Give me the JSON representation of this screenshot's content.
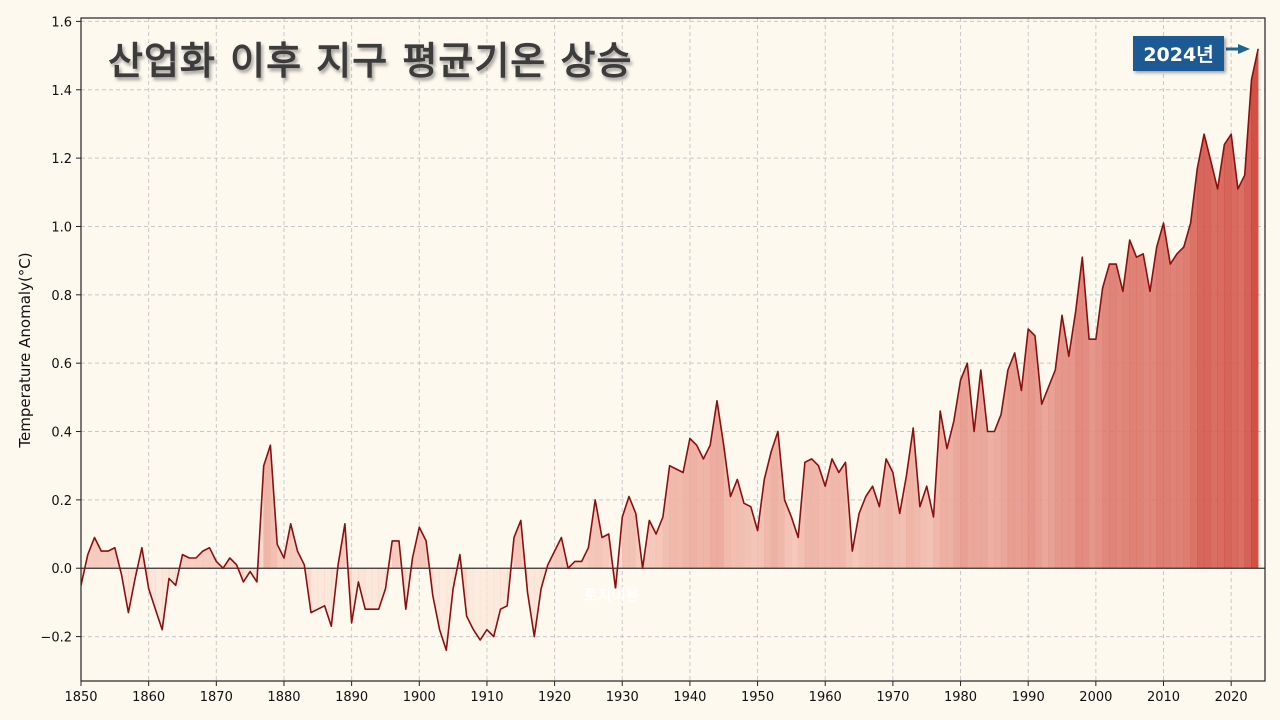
{
  "title": "산업화 이후 지구 평균기온 상승",
  "annotation": {
    "label": "2024년",
    "arrow_color": "#1d6690",
    "badge_color": "#1d5a94"
  },
  "watermark": "토지이용",
  "colors": {
    "background": "#fdf9ef",
    "line": "#8b0f0f",
    "zero_line": "#333333",
    "grid": "#c8c8c8"
  },
  "chart_data": {
    "type": "area",
    "title": "산업화 이후 지구 평균기온 상승",
    "xlabel": "",
    "ylabel": "Temperature Anomaly(°C)",
    "xlim": [
      1850,
      2025
    ],
    "ylim": [
      -0.33,
      1.61
    ],
    "xticks": [
      1850,
      1860,
      1870,
      1880,
      1890,
      1900,
      1910,
      1920,
      1930,
      1940,
      1950,
      1960,
      1970,
      1980,
      1990,
      2000,
      2010,
      2020
    ],
    "yticks": [
      -0.2,
      0.0,
      0.2,
      0.4,
      0.6,
      0.8,
      1.0,
      1.2,
      1.4,
      1.6
    ],
    "ytick_labels": [
      "−0.2",
      "0.0",
      "0.2",
      "0.4",
      "0.6",
      "0.8",
      "1.0",
      "1.2",
      "1.4",
      "1.6"
    ],
    "grid": true,
    "legend": null,
    "annotations": [
      {
        "text": "2024년",
        "x": 2024,
        "y": 1.52
      }
    ],
    "x_start": 1850,
    "values": [
      -0.05,
      0.04,
      0.09,
      0.05,
      0.05,
      0.06,
      -0.02,
      -0.13,
      -0.03,
      0.06,
      -0.06,
      -0.12,
      -0.18,
      -0.03,
      -0.05,
      0.04,
      0.03,
      0.03,
      0.05,
      0.06,
      0.02,
      0.0,
      0.03,
      0.01,
      -0.04,
      -0.01,
      -0.04,
      0.3,
      0.36,
      0.07,
      0.03,
      0.13,
      0.05,
      0.01,
      -0.13,
      -0.12,
      -0.11,
      -0.17,
      0.01,
      0.13,
      -0.16,
      -0.04,
      -0.12,
      -0.12,
      -0.12,
      -0.06,
      0.08,
      0.08,
      -0.12,
      0.03,
      0.12,
      0.08,
      -0.08,
      -0.18,
      -0.24,
      -0.06,
      0.04,
      -0.14,
      -0.18,
      -0.21,
      -0.18,
      -0.2,
      -0.12,
      -0.11,
      0.09,
      0.14,
      -0.07,
      -0.2,
      -0.06,
      0.01,
      0.05,
      0.09,
      0.0,
      0.02,
      0.02,
      0.06,
      0.2,
      0.09,
      0.1,
      -0.06,
      0.15,
      0.21,
      0.16,
      0.0,
      0.14,
      0.1,
      0.15,
      0.3,
      0.29,
      0.28,
      0.38,
      0.36,
      0.32,
      0.36,
      0.49,
      0.36,
      0.21,
      0.26,
      0.19,
      0.18,
      0.11,
      0.26,
      0.34,
      0.4,
      0.2,
      0.15,
      0.09,
      0.31,
      0.32,
      0.3,
      0.24,
      0.32,
      0.28,
      0.31,
      0.05,
      0.16,
      0.21,
      0.24,
      0.18,
      0.32,
      0.28,
      0.16,
      0.27,
      0.41,
      0.18,
      0.24,
      0.15,
      0.46,
      0.35,
      0.43,
      0.55,
      0.6,
      0.4,
      0.58,
      0.4,
      0.4,
      0.45,
      0.58,
      0.63,
      0.52,
      0.7,
      0.68,
      0.48,
      0.53,
      0.58,
      0.74,
      0.62,
      0.75,
      0.91,
      0.67,
      0.67,
      0.82,
      0.89,
      0.89,
      0.81,
      0.96,
      0.91,
      0.92,
      0.81,
      0.94,
      1.01,
      0.89,
      0.92,
      0.94,
      1.01,
      1.17,
      1.27,
      1.19,
      1.11,
      1.24,
      1.27,
      1.11,
      1.15,
      1.43,
      1.52
    ]
  }
}
